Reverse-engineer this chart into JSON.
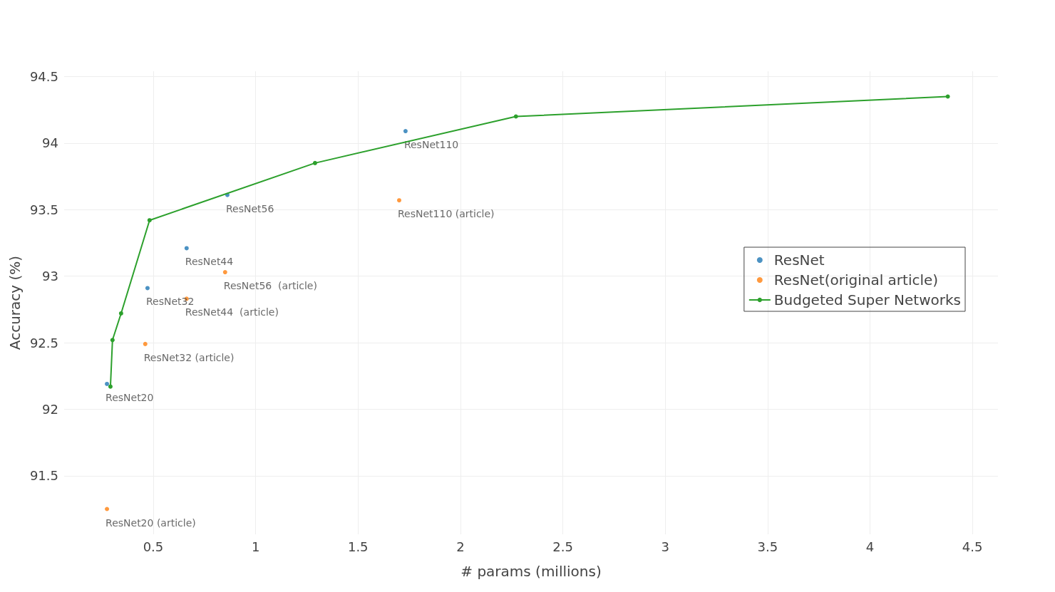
{
  "chart_data": {
    "type": "scatter",
    "xlabel": "# params (millions)",
    "ylabel": "Accuracy (%)",
    "xlim": [
      0.065,
      4.625
    ],
    "xticks": [
      0.5,
      1,
      1.5,
      2,
      2.5,
      3,
      3.5,
      4,
      4.5
    ],
    "ylim": [
      91.06,
      94.54
    ],
    "yticks": [
      91.5,
      92,
      92.5,
      93,
      93.5,
      94,
      94.5
    ],
    "grid": true,
    "legend": "right",
    "marker": "circle",
    "series": [
      {
        "name": "ResNet",
        "color": "#1f77b4",
        "x": [
          0.274,
          0.472,
          0.663,
          0.862,
          1.732
        ],
        "values": [
          92.19,
          92.91,
          93.21,
          93.61,
          94.09
        ],
        "value_labels": [
          "ResNet20",
          "ResNet32",
          "ResNet44",
          "ResNet56",
          "ResNet110"
        ]
      },
      {
        "name": "ResNet(original article)",
        "color": "#ff7f0e",
        "x": [
          0.274,
          0.461,
          0.663,
          0.851,
          1.701
        ],
        "values": [
          91.25,
          92.49,
          92.83,
          93.03,
          93.57
        ],
        "value_labels": [
          "ResNet20 (article)",
          "ResNet32 (article)",
          "ResNet44  (article)",
          "ResNet56  (article)",
          "ResNet110 (article)"
        ]
      },
      {
        "name": "Budgeted Super Networks",
        "type": "line",
        "line_style": "solid",
        "color": "#2ca02c",
        "x": [
          0.291,
          0.301,
          0.343,
          0.482,
          1.29,
          2.271,
          4.38
        ],
        "values": [
          92.17,
          92.52,
          92.72,
          93.42,
          93.85,
          94.2,
          94.35
        ]
      }
    ]
  }
}
